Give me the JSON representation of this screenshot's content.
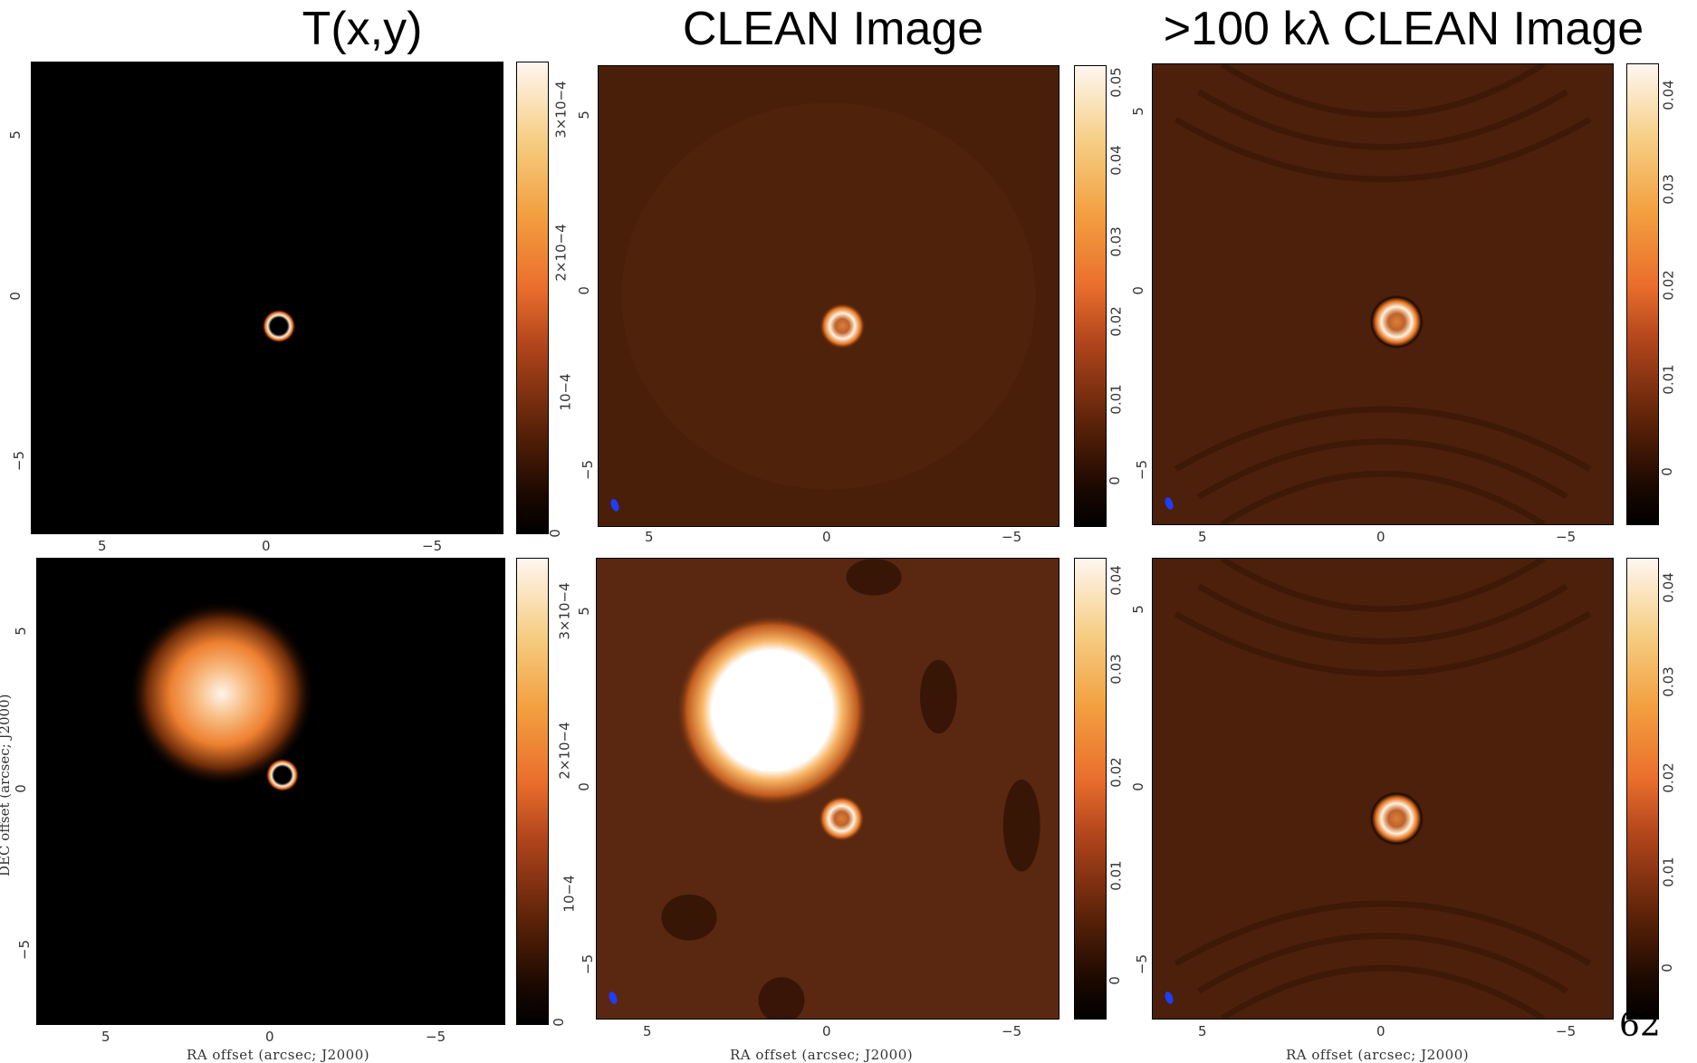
{
  "titles": [
    "T(x,y)",
    "CLEAN Image",
    ">100 kλ CLEAN Image"
  ],
  "xaxis_label": "RA offset (arcsec; J2000)",
  "yaxis_label": "DEC offset (arcsec; J2000)",
  "page_number": "62",
  "x_ticks": [
    "5",
    "0",
    "−5"
  ],
  "y_ticks": [
    "5",
    "0",
    "−5"
  ],
  "panels": [
    {
      "name": "top-left",
      "colorbar_ticks": [
        "0",
        "10−4",
        "2×10−4",
        "3×10−4"
      ]
    },
    {
      "name": "top-middle",
      "colorbar_ticks": [
        "0",
        "0.01",
        "0.02",
        "0.03",
        "0.04",
        "0.05"
      ]
    },
    {
      "name": "top-right",
      "colorbar_ticks": [
        "0",
        "0.01",
        "0.02",
        "0.03",
        "0.04"
      ]
    },
    {
      "name": "bottom-left",
      "colorbar_ticks": [
        "0",
        "10−4",
        "2×10−4",
        "3×10−4"
      ]
    },
    {
      "name": "bottom-middle",
      "colorbar_ticks": [
        "0",
        "0.01",
        "0.02",
        "0.03",
        "0.04"
      ]
    },
    {
      "name": "bottom-right",
      "colorbar_ticks": [
        "0",
        "0.01",
        "0.02",
        "0.03",
        "0.04"
      ]
    }
  ],
  "colors": {
    "beam": "#1f3dff",
    "map_background": "#4a1f0a",
    "model_background": "#000000"
  }
}
